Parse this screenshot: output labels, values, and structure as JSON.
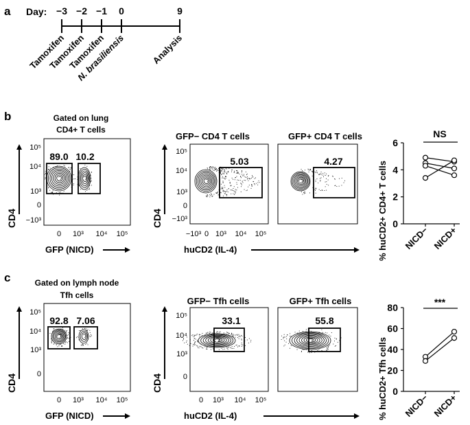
{
  "panel_a": {
    "label": "a",
    "day_label": "Day:",
    "days": [
      "−3",
      "−2",
      "−1",
      "0",
      "9"
    ],
    "events": [
      "Tamoxifen",
      "Tamoxifen",
      "Tamoxifen",
      "N. brasiliensis",
      "Analysis"
    ]
  },
  "panel_b": {
    "label": "b",
    "plot1": {
      "title_line1": "Gated on lung",
      "title_line2": "CD4+ T cells",
      "gate_left": "89.0",
      "gate_right": "10.2",
      "xlabel": "GFP (NICD)",
      "ylabel": "CD4"
    },
    "plot2": {
      "title": "GFP− CD4 T cells",
      "gate": "5.03"
    },
    "plot3": {
      "title": "GFP+ CD4 T cells",
      "gate": "4.27"
    },
    "shared_xlabel": "huCD2 (IL-4)",
    "shared_ylabel": "CD4",
    "flow_x_ticks": [
      "−10³",
      "0",
      "10³",
      "10⁴",
      "10⁵"
    ],
    "flow_y_ticks": [
      "10⁵",
      "10⁴",
      "10³",
      "0",
      "−10³"
    ]
  },
  "panel_c": {
    "label": "c",
    "plot1": {
      "title_line1": "Gated on lymph node",
      "title_line2": "Tfh cells",
      "gate_left": "92.8",
      "gate_right": "7.06",
      "xlabel": "GFP (NICD)",
      "ylabel": "CD4"
    },
    "plot2": {
      "title": "GFP− Tfh cells",
      "gate": "33.1"
    },
    "plot3": {
      "title": "GFP+ Tfh cells",
      "gate": "55.8"
    },
    "shared_xlabel": "huCD2 (IL-4)",
    "shared_ylabel": "CD4",
    "flow_x_ticks": [
      "0",
      "10³",
      "10⁴",
      "10⁵"
    ],
    "flow_y_ticks": [
      "10⁵",
      "10⁴",
      "10³",
      "0"
    ]
  },
  "chart_data": [
    {
      "type": "scatter",
      "ylabel": "% huCD2+ CD4+ T cells",
      "categories": [
        "NICD−",
        "NICD+"
      ],
      "ylim": [
        0,
        6
      ],
      "yticks": [
        "0",
        "2",
        "4",
        "6"
      ],
      "significance": "NS",
      "pairs": [
        [
          4.9,
          4.6
        ],
        [
          4.5,
          4.1
        ],
        [
          4.3,
          3.6
        ],
        [
          3.4,
          4.7
        ]
      ]
    },
    {
      "type": "scatter",
      "ylabel": "% huCD2+ Tfh cells",
      "categories": [
        "NICD−",
        "NICD+"
      ],
      "ylim": [
        0,
        80
      ],
      "yticks": [
        "0",
        "20",
        "40",
        "60",
        "80"
      ],
      "significance": "***",
      "pairs": [
        [
          33,
          57
        ],
        [
          29,
          51
        ]
      ]
    }
  ]
}
